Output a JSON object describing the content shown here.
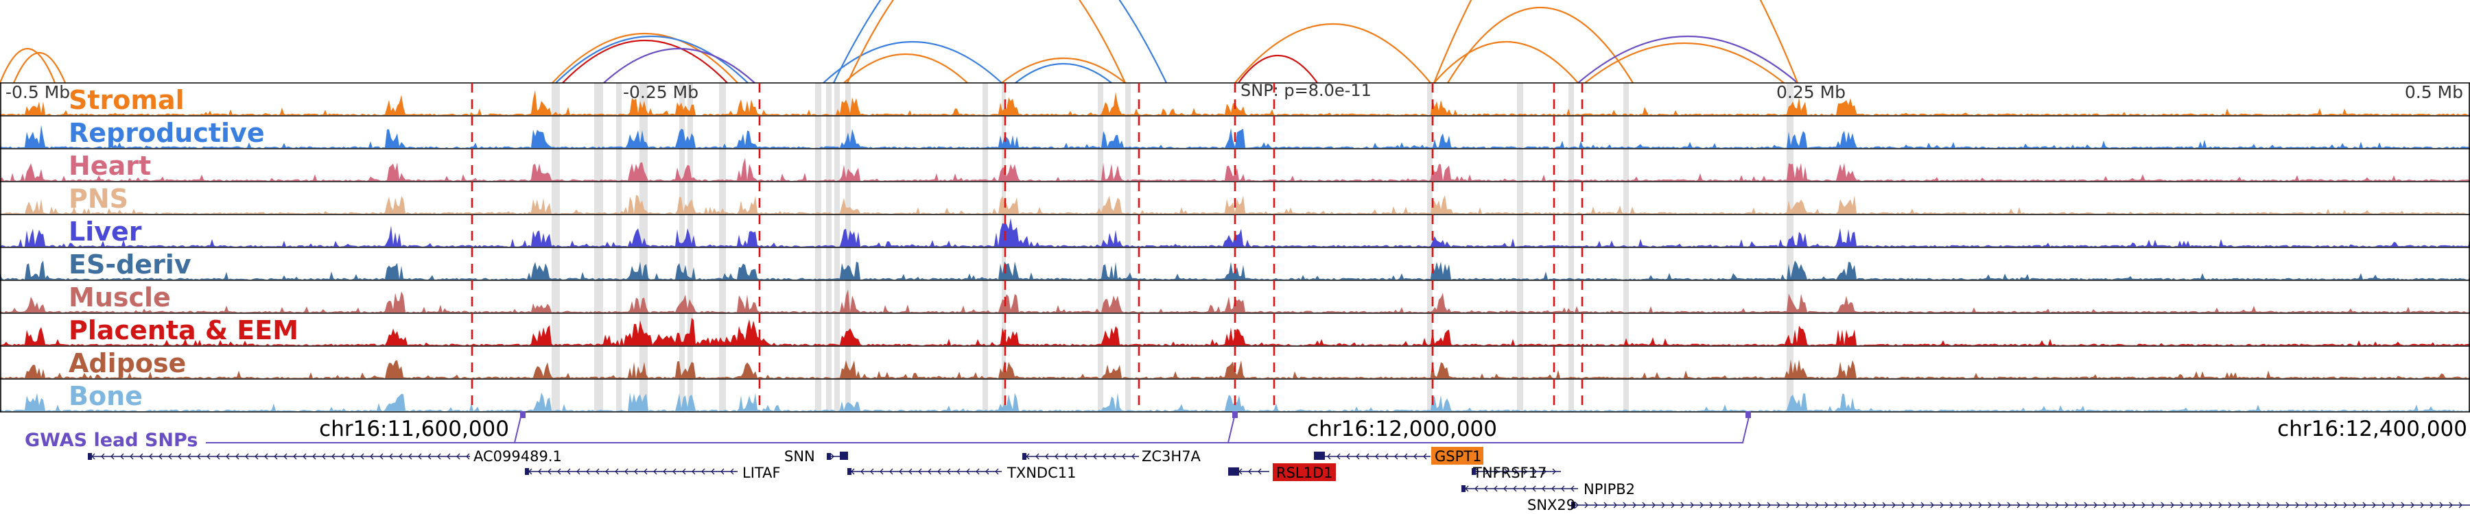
{
  "scale": {
    "left": "-0.5 Mb",
    "mid_left": "-0.25 Mb",
    "mid_right": "0.25 Mb",
    "right": "0.5 Mb"
  },
  "snp_annotation": "SNP: p=8.0e-11",
  "tracks": [
    {
      "name": "Stromal",
      "color": "#f07c1a"
    },
    {
      "name": "Reproductive",
      "color": "#3a7fe0"
    },
    {
      "name": "Heart",
      "color": "#d46a80"
    },
    {
      "name": "PNS",
      "color": "#e3b48e"
    },
    {
      "name": "Liver",
      "color": "#4a4ad6"
    },
    {
      "name": "ES-deriv",
      "color": "#3f6f9e"
    },
    {
      "name": "Muscle",
      "color": "#c46a66"
    },
    {
      "name": "Placenta & EEM",
      "color": "#d11414"
    },
    {
      "name": "Adipose",
      "color": "#b05e3e"
    },
    {
      "name": "Bone",
      "color": "#7fb6e0"
    }
  ],
  "coordinates": [
    "chr16:11,600,000",
    "chr16:12,000,000",
    "chr16:12,400,000"
  ],
  "gwas": {
    "title": "GWAS lead SNPs",
    "color": "#6a4fc4"
  },
  "genes": [
    {
      "name": "AC099489.1",
      "highlight": "none"
    },
    {
      "name": "SNN",
      "highlight": "none"
    },
    {
      "name": "ZC3H7A",
      "highlight": "none"
    },
    {
      "name": "GSPT1",
      "highlight": "#f07c1a"
    },
    {
      "name": "LITAF",
      "highlight": "none"
    },
    {
      "name": "TXNDC11",
      "highlight": "none"
    },
    {
      "name": "RSL1D1",
      "highlight": "#d11414"
    },
    {
      "name": "TNFRSF17",
      "highlight": "none"
    },
    {
      "name": "NPIPB2",
      "highlight": "none"
    },
    {
      "name": "SNX29",
      "highlight": "none"
    }
  ],
  "colors": {
    "highlight_band": "#d9d9d9",
    "dashed_line": "#e01010",
    "gene_glyph": "#1a1a66",
    "loop_orange": "#f07c1a",
    "loop_blue": "#3a7fe0",
    "loop_red": "#d11414",
    "loop_purple": "#6a4fc4"
  }
}
